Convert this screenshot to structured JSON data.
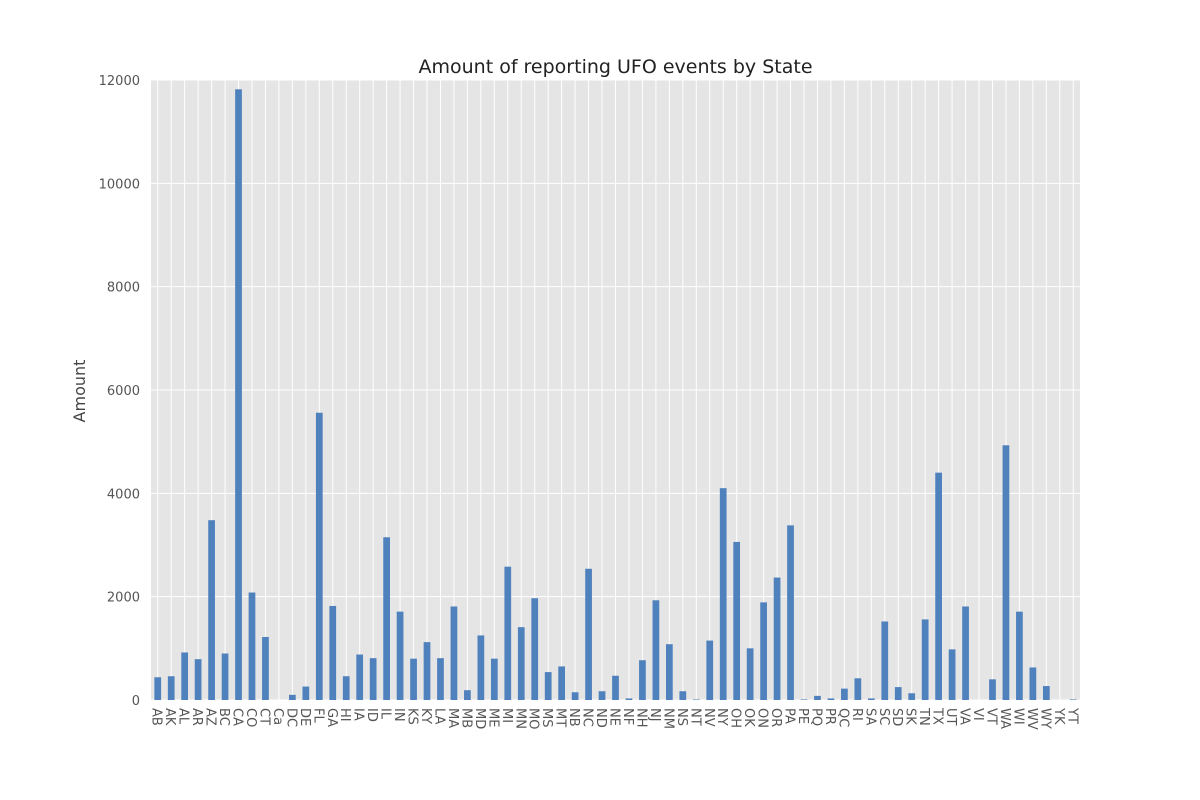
{
  "colors": {
    "background": "#ffffff",
    "plot_background": "#e5e5e5",
    "grid": "#ffffff",
    "bar": "#4f81bd"
  },
  "chart_data": {
    "type": "bar",
    "title": "Amount of reporting UFO events by State",
    "xlabel": "",
    "ylabel": "Amount",
    "ylim": [
      0,
      12000
    ],
    "yticks": [
      0,
      2000,
      4000,
      6000,
      8000,
      10000,
      12000
    ],
    "grid": true,
    "legend": "none",
    "categories": [
      "AB",
      "AK",
      "AL",
      "AR",
      "AZ",
      "BC",
      "CA",
      "CO",
      "CT",
      "Ca",
      "DC",
      "DE",
      "FL",
      "GA",
      "HI",
      "IA",
      "ID",
      "IL",
      "IN",
      "KS",
      "KY",
      "LA",
      "MA",
      "MB",
      "MD",
      "ME",
      "MI",
      "MN",
      "MO",
      "MS",
      "MT",
      "NB",
      "NC",
      "ND",
      "NE",
      "NF",
      "NH",
      "NJ",
      "NM",
      "NS",
      "NT",
      "NV",
      "NY",
      "OH",
      "OK",
      "ON",
      "OR",
      "PA",
      "PE",
      "PQ",
      "PR",
      "QC",
      "RI",
      "SA",
      "SC",
      "SD",
      "SK",
      "TN",
      "TX",
      "UT",
      "VA",
      "VI",
      "VT",
      "WA",
      "WI",
      "WV",
      "WY",
      "YK",
      "YT"
    ],
    "values": [
      440,
      460,
      920,
      790,
      3480,
      900,
      11820,
      2080,
      1220,
      0,
      100,
      260,
      5560,
      1820,
      460,
      880,
      810,
      3150,
      1710,
      800,
      1120,
      810,
      1810,
      190,
      1250,
      800,
      2580,
      1410,
      1970,
      540,
      650,
      150,
      2540,
      170,
      470,
      30,
      770,
      1930,
      1080,
      170,
      10,
      1150,
      4100,
      3060,
      1000,
      1890,
      2370,
      3380,
      10,
      80,
      30,
      220,
      420,
      30,
      1520,
      250,
      130,
      1560,
      4400,
      980,
      1810,
      0,
      400,
      4930,
      1710,
      630,
      270,
      0,
      10
    ]
  }
}
